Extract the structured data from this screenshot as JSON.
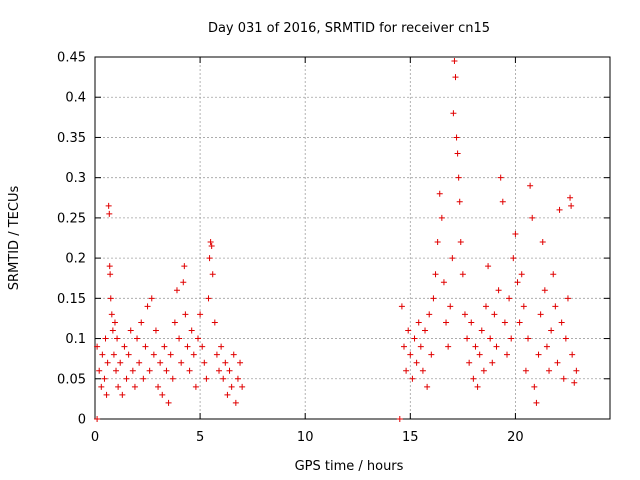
{
  "chart_data": {
    "type": "scatter",
    "title": "Day 031 of 2016, SRMTID for receiver cn15",
    "xlabel": "GPS time / hours",
    "ylabel": "SRMTID / TECUs",
    "xlim": [
      0,
      24.5
    ],
    "ylim": [
      0,
      0.45
    ],
    "xticks": [
      0,
      5,
      10,
      15,
      20
    ],
    "xtick_labels": [
      "0",
      "5",
      "10",
      "15",
      "20"
    ],
    "yticks": [
      0,
      0.05,
      0.1,
      0.15,
      0.2,
      0.25,
      0.3,
      0.35,
      0.4,
      0.45
    ],
    "ytick_labels": [
      "0",
      "0.05",
      "0.1",
      "0.15",
      "0.2",
      "0.25",
      "0.3",
      "0.35",
      "0.4",
      "0.45"
    ],
    "grid": true,
    "marker": "+",
    "color": "#e00000",
    "series": [
      {
        "name": "SRMTID",
        "points": [
          [
            0.1,
            0.0
          ],
          [
            14.5,
            0.0
          ],
          [
            0.1,
            0.09
          ],
          [
            0.2,
            0.06
          ],
          [
            0.3,
            0.04
          ],
          [
            0.35,
            0.08
          ],
          [
            0.45,
            0.05
          ],
          [
            0.5,
            0.1
          ],
          [
            0.55,
            0.03
          ],
          [
            0.6,
            0.07
          ],
          [
            0.65,
            0.265
          ],
          [
            0.68,
            0.255
          ],
          [
            0.7,
            0.19
          ],
          [
            0.72,
            0.18
          ],
          [
            0.75,
            0.15
          ],
          [
            0.8,
            0.13
          ],
          [
            0.85,
            0.11
          ],
          [
            0.9,
            0.08
          ],
          [
            0.95,
            0.12
          ],
          [
            1.0,
            0.06
          ],
          [
            1.05,
            0.1
          ],
          [
            1.1,
            0.04
          ],
          [
            1.2,
            0.07
          ],
          [
            1.3,
            0.03
          ],
          [
            1.4,
            0.09
          ],
          [
            1.5,
            0.05
          ],
          [
            1.6,
            0.08
          ],
          [
            1.7,
            0.11
          ],
          [
            1.8,
            0.06
          ],
          [
            1.9,
            0.04
          ],
          [
            2.0,
            0.1
          ],
          [
            2.1,
            0.07
          ],
          [
            2.2,
            0.12
          ],
          [
            2.3,
            0.05
          ],
          [
            2.4,
            0.09
          ],
          [
            2.5,
            0.14
          ],
          [
            2.6,
            0.06
          ],
          [
            2.7,
            0.15
          ],
          [
            2.8,
            0.08
          ],
          [
            2.9,
            0.11
          ],
          [
            3.0,
            0.04
          ],
          [
            3.1,
            0.07
          ],
          [
            3.2,
            0.03
          ],
          [
            3.3,
            0.09
          ],
          [
            3.4,
            0.06
          ],
          [
            3.5,
            0.02
          ],
          [
            3.6,
            0.08
          ],
          [
            3.7,
            0.05
          ],
          [
            3.8,
            0.12
          ],
          [
            3.9,
            0.16
          ],
          [
            4.0,
            0.1
          ],
          [
            4.1,
            0.07
          ],
          [
            4.2,
            0.17
          ],
          [
            4.25,
            0.19
          ],
          [
            4.3,
            0.13
          ],
          [
            4.4,
            0.09
          ],
          [
            4.5,
            0.06
          ],
          [
            4.6,
            0.11
          ],
          [
            4.7,
            0.08
          ],
          [
            4.8,
            0.04
          ],
          [
            4.9,
            0.1
          ],
          [
            5.0,
            0.13
          ],
          [
            5.1,
            0.09
          ],
          [
            5.2,
            0.07
          ],
          [
            5.3,
            0.05
          ],
          [
            5.4,
            0.15
          ],
          [
            5.45,
            0.2
          ],
          [
            5.5,
            0.22
          ],
          [
            5.55,
            0.215
          ],
          [
            5.6,
            0.18
          ],
          [
            5.7,
            0.12
          ],
          [
            5.8,
            0.08
          ],
          [
            5.9,
            0.06
          ],
          [
            6.0,
            0.09
          ],
          [
            6.1,
            0.05
          ],
          [
            6.2,
            0.07
          ],
          [
            6.3,
            0.03
          ],
          [
            6.4,
            0.06
          ],
          [
            6.5,
            0.04
          ],
          [
            6.6,
            0.08
          ],
          [
            6.7,
            0.02
          ],
          [
            6.8,
            0.05
          ],
          [
            6.9,
            0.07
          ],
          [
            7.0,
            0.04
          ],
          [
            14.6,
            0.14
          ],
          [
            14.7,
            0.09
          ],
          [
            14.8,
            0.06
          ],
          [
            14.9,
            0.11
          ],
          [
            15.0,
            0.08
          ],
          [
            15.1,
            0.05
          ],
          [
            15.2,
            0.1
          ],
          [
            15.3,
            0.07
          ],
          [
            15.4,
            0.12
          ],
          [
            15.5,
            0.09
          ],
          [
            15.6,
            0.06
          ],
          [
            15.7,
            0.11
          ],
          [
            15.8,
            0.04
          ],
          [
            15.9,
            0.13
          ],
          [
            16.0,
            0.08
          ],
          [
            16.1,
            0.15
          ],
          [
            16.2,
            0.18
          ],
          [
            16.3,
            0.22
          ],
          [
            16.4,
            0.28
          ],
          [
            16.5,
            0.25
          ],
          [
            16.6,
            0.17
          ],
          [
            16.7,
            0.12
          ],
          [
            16.8,
            0.09
          ],
          [
            16.9,
            0.14
          ],
          [
            17.0,
            0.2
          ],
          [
            17.05,
            0.38
          ],
          [
            17.1,
            0.445
          ],
          [
            17.15,
            0.425
          ],
          [
            17.2,
            0.35
          ],
          [
            17.25,
            0.33
          ],
          [
            17.3,
            0.3
          ],
          [
            17.35,
            0.27
          ],
          [
            17.4,
            0.22
          ],
          [
            17.5,
            0.18
          ],
          [
            17.6,
            0.13
          ],
          [
            17.7,
            0.1
          ],
          [
            17.8,
            0.07
          ],
          [
            17.9,
            0.12
          ],
          [
            18.0,
            0.05
          ],
          [
            18.1,
            0.09
          ],
          [
            18.2,
            0.04
          ],
          [
            18.3,
            0.08
          ],
          [
            18.4,
            0.11
          ],
          [
            18.5,
            0.06
          ],
          [
            18.6,
            0.14
          ],
          [
            18.7,
            0.19
          ],
          [
            18.8,
            0.1
          ],
          [
            18.9,
            0.07
          ],
          [
            19.0,
            0.13
          ],
          [
            19.1,
            0.09
          ],
          [
            19.2,
            0.16
          ],
          [
            19.3,
            0.3
          ],
          [
            19.4,
            0.27
          ],
          [
            19.5,
            0.12
          ],
          [
            19.6,
            0.08
          ],
          [
            19.7,
            0.15
          ],
          [
            19.8,
            0.1
          ],
          [
            19.9,
            0.2
          ],
          [
            20.0,
            0.23
          ],
          [
            20.1,
            0.17
          ],
          [
            20.2,
            0.12
          ],
          [
            20.3,
            0.18
          ],
          [
            20.4,
            0.14
          ],
          [
            20.5,
            0.06
          ],
          [
            20.6,
            0.1
          ],
          [
            20.7,
            0.29
          ],
          [
            20.8,
            0.25
          ],
          [
            20.9,
            0.04
          ],
          [
            21.0,
            0.02
          ],
          [
            21.1,
            0.08
          ],
          [
            21.2,
            0.13
          ],
          [
            21.3,
            0.22
          ],
          [
            21.4,
            0.16
          ],
          [
            21.5,
            0.09
          ],
          [
            21.6,
            0.06
          ],
          [
            21.7,
            0.11
          ],
          [
            21.8,
            0.18
          ],
          [
            21.9,
            0.14
          ],
          [
            22.0,
            0.07
          ],
          [
            22.1,
            0.26
          ],
          [
            22.2,
            0.12
          ],
          [
            22.3,
            0.05
          ],
          [
            22.4,
            0.1
          ],
          [
            22.5,
            0.15
          ],
          [
            22.6,
            0.275
          ],
          [
            22.65,
            0.265
          ],
          [
            22.7,
            0.08
          ],
          [
            22.8,
            0.045
          ],
          [
            22.9,
            0.06
          ]
        ]
      }
    ]
  }
}
